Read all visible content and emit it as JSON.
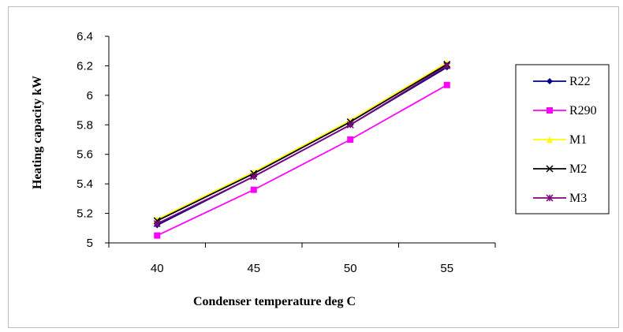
{
  "chart_data": {
    "type": "line",
    "title": "",
    "xlabel": "Condenser temperature deg C",
    "ylabel": "Heating capacity kW",
    "categories": [
      "40",
      "45",
      "50",
      "55"
    ],
    "ylim": [
      5,
      6.4
    ],
    "yticks": [
      "5",
      "5.2",
      "5.4",
      "5.6",
      "5.8",
      "6",
      "6.2",
      "6.4"
    ],
    "grid": false,
    "legend_position": "right",
    "series": [
      {
        "name": "R22",
        "values": [
          5.12,
          5.45,
          5.8,
          6.19
        ],
        "color": "#000080",
        "marker": "diamond"
      },
      {
        "name": "R290",
        "values": [
          5.05,
          5.36,
          5.7,
          6.07
        ],
        "color": "#ff00ff",
        "marker": "square"
      },
      {
        "name": "M1",
        "values": [
          5.16,
          5.48,
          5.83,
          6.22
        ],
        "color": "#ffff00",
        "marker": "triangle"
      },
      {
        "name": "M2",
        "values": [
          5.15,
          5.47,
          5.82,
          6.21
        ],
        "color": "#000000",
        "marker": "x"
      },
      {
        "name": "M3",
        "values": [
          5.13,
          5.45,
          5.8,
          6.2
        ],
        "color": "#800080",
        "marker": "star"
      }
    ]
  }
}
